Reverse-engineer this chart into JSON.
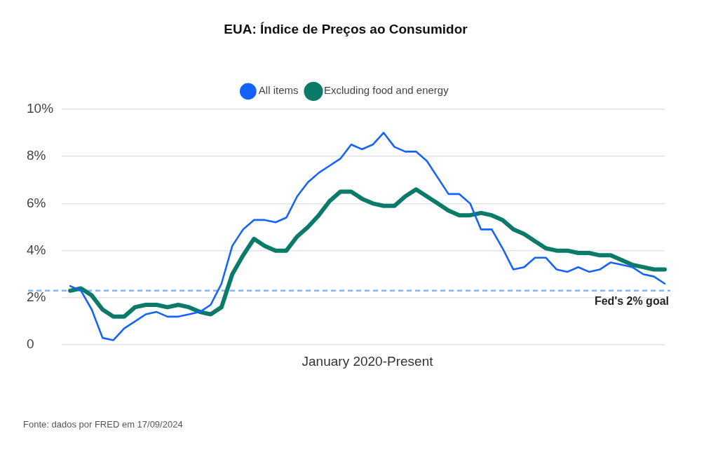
{
  "chart_data": {
    "type": "line",
    "title": "EUA: Índice de Preços ao Consumidor",
    "xlabel": "January 2020-Present",
    "categories": [
      null,
      null,
      null,
      null,
      null,
      null,
      null,
      null,
      null,
      null,
      null,
      null,
      null,
      null,
      null,
      null,
      null,
      null,
      null,
      null,
      null,
      null,
      null,
      null,
      null,
      null,
      null,
      null,
      null,
      null,
      null,
      null,
      null,
      null,
      null,
      null,
      null,
      null,
      null,
      null,
      null,
      null,
      null,
      null,
      null,
      null,
      null,
      null,
      null,
      null,
      null,
      null,
      null,
      null,
      null,
      null
    ],
    "series": [
      {
        "name": "All items",
        "color": "#1463ff",
        "values": [
          2.5,
          2.3,
          1.5,
          0.3,
          0.2,
          0.7,
          1.0,
          1.3,
          1.4,
          1.2,
          1.2,
          1.3,
          1.4,
          1.7,
          2.6,
          4.2,
          4.9,
          5.3,
          5.3,
          5.2,
          5.4,
          6.3,
          6.9,
          7.3,
          7.6,
          7.9,
          8.5,
          8.3,
          8.5,
          9.0,
          8.4,
          8.2,
          8.2,
          7.8,
          7.1,
          6.4,
          6.4,
          6.0,
          4.9,
          4.9,
          4.1,
          3.2,
          3.3,
          3.7,
          3.7,
          3.2,
          3.1,
          3.3,
          3.1,
          3.2,
          3.5,
          3.4,
          3.3,
          3.0,
          2.9,
          2.6
        ]
      },
      {
        "name": "Excluding food and energy",
        "color": "#0b7a68",
        "values": [
          2.3,
          2.4,
          2.1,
          1.5,
          1.2,
          1.2,
          1.6,
          1.7,
          1.7,
          1.6,
          1.7,
          1.6,
          1.4,
          1.3,
          1.6,
          3.0,
          3.8,
          4.5,
          4.2,
          4.0,
          4.0,
          4.6,
          5.0,
          5.5,
          6.1,
          6.5,
          6.5,
          6.2,
          6.0,
          5.9,
          5.9,
          6.3,
          6.6,
          6.3,
          6.0,
          5.7,
          5.5,
          5.5,
          5.6,
          5.5,
          5.3,
          4.9,
          4.7,
          4.4,
          4.1,
          4.0,
          4.0,
          3.9,
          3.9,
          3.8,
          3.8,
          3.6,
          3.4,
          3.3,
          3.2,
          3.2
        ]
      }
    ],
    "ylim": [
      0,
      10
    ],
    "yticks": [
      0,
      {
        "value": 2,
        "label": "2%"
      },
      {
        "value": 4,
        "label": "4%"
      },
      {
        "value": 6,
        "label": "6%"
      },
      {
        "value": 8,
        "label": "8%"
      },
      {
        "value": 10,
        "label": "10%"
      }
    ],
    "grid": "y",
    "legend": "top",
    "ref_lines": [
      {
        "axis": "y",
        "value": 2.3,
        "label": "Fed's 2% goal",
        "color": "#8ab4f8",
        "line_style": "dashed"
      }
    ],
    "annotations": [
      "Fonte: dados por FRED em 17/09/2024"
    ]
  }
}
